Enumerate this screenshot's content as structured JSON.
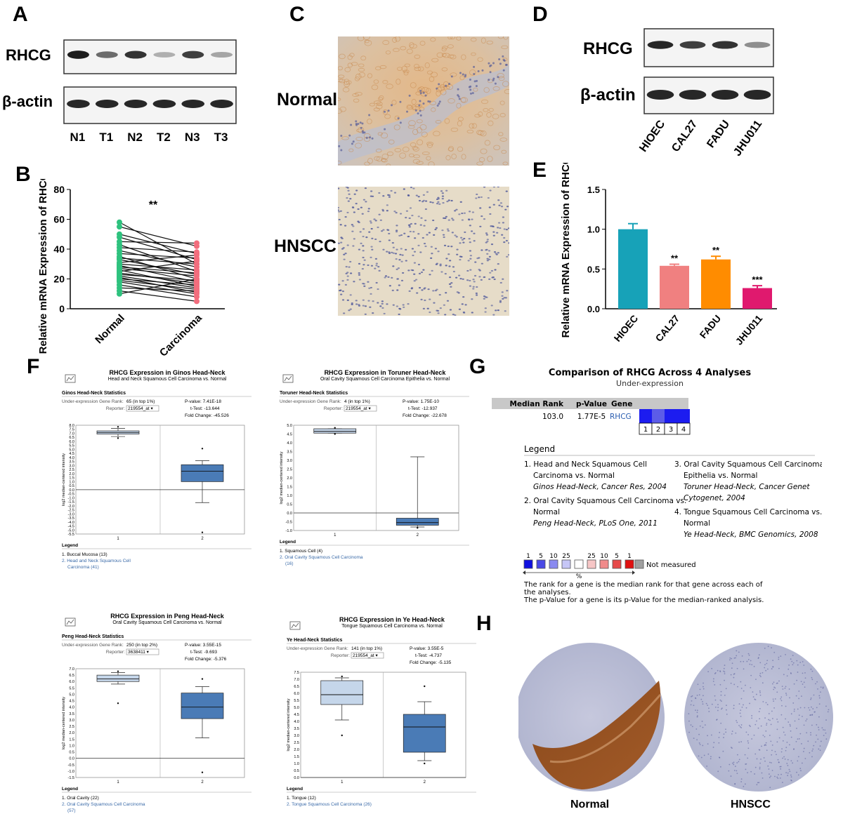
{
  "panels": {
    "A": {
      "letter": "A",
      "rows": [
        "RHCG",
        "β-actin"
      ],
      "lanes": [
        "N1",
        "T1",
        "N2",
        "T2",
        "N3",
        "T3"
      ],
      "rhcg_intensity": [
        0.95,
        0.6,
        0.85,
        0.3,
        0.8,
        0.35
      ]
    },
    "B": {
      "letter": "B",
      "ylabel": "Relative mRNA Expression of RHCG",
      "xcats": [
        "Normal",
        "Carcinoma"
      ],
      "sig": "**",
      "yticks": [
        "0",
        "20",
        "40",
        "60",
        "80"
      ]
    },
    "C": {
      "letter": "C",
      "labels": [
        "Normal",
        "HNSCC"
      ]
    },
    "D": {
      "letter": "D",
      "rows": [
        "RHCG",
        "β-actin"
      ],
      "lanes": [
        "HIOEC",
        "CAL27",
        "FADU",
        "JHU011"
      ],
      "rhcg_intensity": [
        0.9,
        0.8,
        0.85,
        0.45
      ]
    },
    "E": {
      "letter": "E",
      "ylabel": "Relative mRNA Expression of RHCG",
      "yticks": [
        "0.0",
        "0.5",
        "1.0",
        "1.5"
      ]
    },
    "F": {
      "letter": "F",
      "legend_title": "Legend",
      "plots": [
        {
          "title": "RHCG Expression in Ginos Head-Neck",
          "subtitle": "Head and Neck Squamous Cell Carcinoma vs. Normal",
          "stats_title": "Ginos Head-Neck Statistics",
          "rank_label": "Under-expression Gene Rank:",
          "rank": "65 (in top 1%)",
          "reporter_label": "Reporter:",
          "reporter": "219554_at ▾",
          "pvalue": "P-value: 7.41E-18",
          "ttest": "t-Test: -13.644",
          "fold": "Fold Change: -45.526",
          "ylabel": "log2 median-centered intensity",
          "legend": [
            "1. Buccal Mucosa (13)",
            "2. Head and Neck Squamous Cell",
            "Carcinoma (41)"
          ]
        },
        {
          "title": "RHCG Expression in Toruner Head-Neck",
          "subtitle": "Oral Cavity Squamous Cell Carcinoma Epithelia vs. Normal",
          "stats_title": "Toruner Head-Neck Statistics",
          "rank_label": "Under-expression Gene Rank:",
          "rank": "4 (in top 1%)",
          "reporter_label": "Reporter:",
          "reporter": "219554_at ▾",
          "pvalue": "P-value: 1.75E-10",
          "ttest": "t-Test: -12.937",
          "fold": "Fold Change: -22.678",
          "ylabel": "log2 median-centered intensity",
          "legend": [
            "1. Squamous Cell (4)",
            "2. Oral Cavity Squamous Cell Carcinoma",
            "(16)"
          ]
        },
        {
          "title": "RHCG Expression in Peng Head-Neck",
          "subtitle": "Oral Cavity Squamous Cell Carcinoma vs. Normal",
          "stats_title": "Peng Head-Neck Statistics",
          "rank_label": "Under-expression Gene Rank:",
          "rank": "250 (in top 2%)",
          "reporter_label": "Reporter:",
          "reporter": "3638411 ▾",
          "pvalue": "P-value: 3.55E-15",
          "ttest": "t-Test: -9.693",
          "fold": "Fold Change: -5.376",
          "ylabel": "log2 median-centered intensity",
          "legend": [
            "1. Oral Cavity (22)",
            "2. Oral Cavity Squamous Cell Carcinoma",
            "(57)"
          ]
        },
        {
          "title": "RHCG Expression in Ye Head-Neck",
          "subtitle": "Tongue Squamous Cell Carcinoma vs. Normal",
          "stats_title": "Ye Head-Neck Statistics",
          "rank_label": "Under-expression Gene Rank:",
          "rank": "141 (in top 1%)",
          "reporter_label": "Reporter:",
          "reporter": "219554_at ▾",
          "pvalue": "P-value: 3.55E-5",
          "ttest": "t-Test: -4.737",
          "fold": "Fold Change: -5.135",
          "ylabel": "log2 median-centered intensity",
          "legend": [
            "1. Tongue (12)",
            "2. Tongue Squamous Cell Carcinoma (26)"
          ]
        }
      ]
    },
    "G": {
      "letter": "G",
      "title": "Comparison of RHCG Across 4 Analyses",
      "subtitle": "Under-expression",
      "headers": [
        "Median Rank",
        "p-Value",
        "Gene"
      ],
      "row": [
        "103.0",
        "1.77E-5",
        "RHCG"
      ],
      "cells": [
        "1",
        "2",
        "3",
        "4"
      ],
      "legend_title": "Legend",
      "legend_items": [
        [
          "1. Head and Neck Squamous Cell",
          "Carcinoma vs. Normal",
          "Ginos Head-Neck, Cancer Res, 2004"
        ],
        [
          "2. Oral Cavity Squamous Cell Carcinoma vs.",
          "Normal",
          "Peng Head-Neck, PLoS One, 2011"
        ],
        [
          "3. Oral Cavity Squamous Cell Carcinoma",
          "Epithelia vs. Normal",
          "Toruner Head-Neck, Cancer Genet",
          "Cytogenet, 2004"
        ],
        [
          "4. Tongue Squamous Cell Carcinoma vs.",
          "Normal",
          "Ye Head-Neck, BMC Genomics, 2008"
        ]
      ],
      "scale_labels": [
        "1",
        "5",
        "10",
        "25",
        "25",
        "10",
        "5",
        "1"
      ],
      "not_measured": "Not measured",
      "percent": "%",
      "note": [
        "The rank for a gene is the median rank for that gene across each of",
        "the analyses.",
        "The p-Value for a gene is its p-Value for the median-ranked analysis."
      ]
    },
    "H": {
      "letter": "H",
      "labels": [
        "Normal",
        "HNSCC"
      ]
    }
  },
  "chart_data": [
    {
      "type": "scatter",
      "panel": "B",
      "ylabel": "Relative mRNA Expression of RHCG",
      "categories": [
        "Normal",
        "Carcinoma"
      ],
      "ylim": [
        0,
        80
      ],
      "pairs": [
        [
          58,
          30
        ],
        [
          55,
          42
        ],
        [
          50,
          37
        ],
        [
          48,
          33
        ],
        [
          45,
          44
        ],
        [
          43,
          25
        ],
        [
          41,
          38
        ],
        [
          39,
          28
        ],
        [
          37,
          34
        ],
        [
          35,
          20
        ],
        [
          34,
          30
        ],
        [
          33,
          23
        ],
        [
          31,
          36
        ],
        [
          30,
          26
        ],
        [
          29,
          18
        ],
        [
          28,
          24
        ],
        [
          27,
          22
        ],
        [
          26,
          15
        ],
        [
          25,
          32
        ],
        [
          24,
          17
        ],
        [
          23,
          19
        ],
        [
          22,
          14
        ],
        [
          21,
          11
        ],
        [
          20,
          16
        ],
        [
          19,
          13
        ],
        [
          18,
          10
        ],
        [
          16,
          8
        ],
        [
          14,
          12
        ],
        [
          12,
          5
        ],
        [
          10,
          20
        ]
      ]
    },
    {
      "type": "bar",
      "panel": "E",
      "ylabel": "Relative mRNA Expression of RHCG",
      "categories": [
        "HIOEC",
        "CAL27",
        "FADU",
        "JHU011"
      ],
      "values": [
        1.0,
        0.54,
        0.62,
        0.26
      ],
      "errors": [
        0.07,
        0.02,
        0.04,
        0.03
      ],
      "significance": [
        "",
        "**",
        "**",
        "***"
      ],
      "colors": [
        "#17a2b8",
        "#f08080",
        "#ff8c00",
        "#e0196e"
      ],
      "ylim": [
        0,
        1.5
      ]
    },
    {
      "type": "box",
      "panel": "F",
      "title": "RHCG Expression in Ginos Head-Neck",
      "ylim": [
        -5.5,
        8.0
      ],
      "boxes": [
        {
          "group": "1",
          "min": 6.6,
          "q1": 6.9,
          "median": 7.1,
          "q3": 7.3,
          "max": 7.6,
          "outliers": [
            7.8,
            6.4
          ]
        },
        {
          "group": "2",
          "min": -1.6,
          "q1": 1.0,
          "median": 2.3,
          "q3": 3.1,
          "max": 3.6,
          "outliers": [
            5.1,
            -5.3
          ]
        }
      ]
    },
    {
      "type": "box",
      "panel": "F",
      "title": "RHCG Expression in Toruner Head-Neck",
      "ylim": [
        -1.0,
        5.0
      ],
      "boxes": [
        {
          "group": "1",
          "min": 4.55,
          "q1": 4.55,
          "median": 4.65,
          "q3": 4.8,
          "max": 4.8,
          "outliers": [
            4.85,
            4.5
          ]
        },
        {
          "group": "2",
          "min": -0.8,
          "q1": -0.7,
          "median": -0.55,
          "q3": -0.3,
          "max": 3.2,
          "outliers": [
            -0.85
          ]
        }
      ]
    },
    {
      "type": "box",
      "panel": "F",
      "title": "RHCG Expression in Peng Head-Neck",
      "ylim": [
        -1.5,
        7.0
      ],
      "boxes": [
        {
          "group": "1",
          "min": 5.8,
          "q1": 6.0,
          "median": 6.2,
          "q3": 6.5,
          "max": 6.7,
          "outliers": [
            6.8,
            4.3
          ]
        },
        {
          "group": "2",
          "min": 1.6,
          "q1": 3.1,
          "median": 4.0,
          "q3": 5.1,
          "max": 5.6,
          "outliers": [
            6.2,
            -1.1
          ]
        }
      ]
    },
    {
      "type": "box",
      "panel": "F",
      "title": "RHCG Expression in Ye Head-Neck",
      "ylim": [
        0,
        7.5
      ],
      "boxes": [
        {
          "group": "1",
          "min": 4.1,
          "q1": 5.2,
          "median": 5.9,
          "q3": 6.9,
          "max": 7.1,
          "outliers": [
            7.2,
            3.0
          ]
        },
        {
          "group": "2",
          "min": 1.2,
          "q1": 1.8,
          "median": 3.6,
          "q3": 4.5,
          "max": 5.4,
          "outliers": [
            6.5,
            1.0
          ]
        }
      ]
    }
  ]
}
